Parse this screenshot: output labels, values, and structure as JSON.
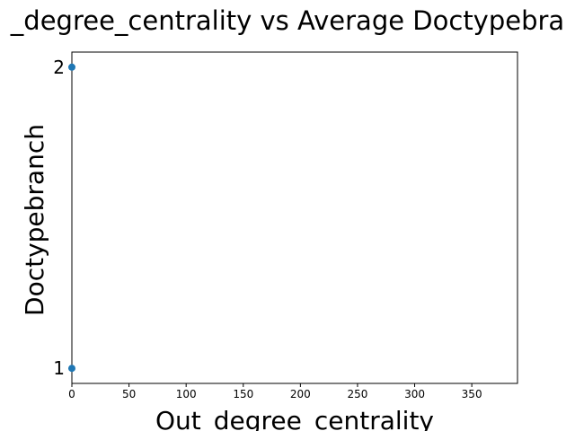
{
  "chart_data": {
    "type": "scatter",
    "title": "_degree_centrality vs Average Doctypebra",
    "xlabel": "Out_degree_centrality",
    "ylabel": "Doctypebranch",
    "xlim": [
      0,
      390
    ],
    "ylim": [
      0.95,
      2.05
    ],
    "x_ticks": [
      0,
      50,
      100,
      150,
      200,
      250,
      300,
      350
    ],
    "x_tick_labels": [
      "0",
      "50",
      "100",
      "150",
      "200",
      "250",
      "300",
      "350"
    ],
    "y_ticks": [
      1,
      2
    ],
    "y_tick_labels": [
      "1",
      "2"
    ],
    "grid": false,
    "series": [
      {
        "points": [
          {
            "x": 0,
            "y": 2
          },
          {
            "x": 0,
            "y": 1
          }
        ]
      }
    ],
    "colors": {
      "marker": "#1f77b4",
      "axes": "#000000",
      "background": "#ffffff"
    }
  }
}
